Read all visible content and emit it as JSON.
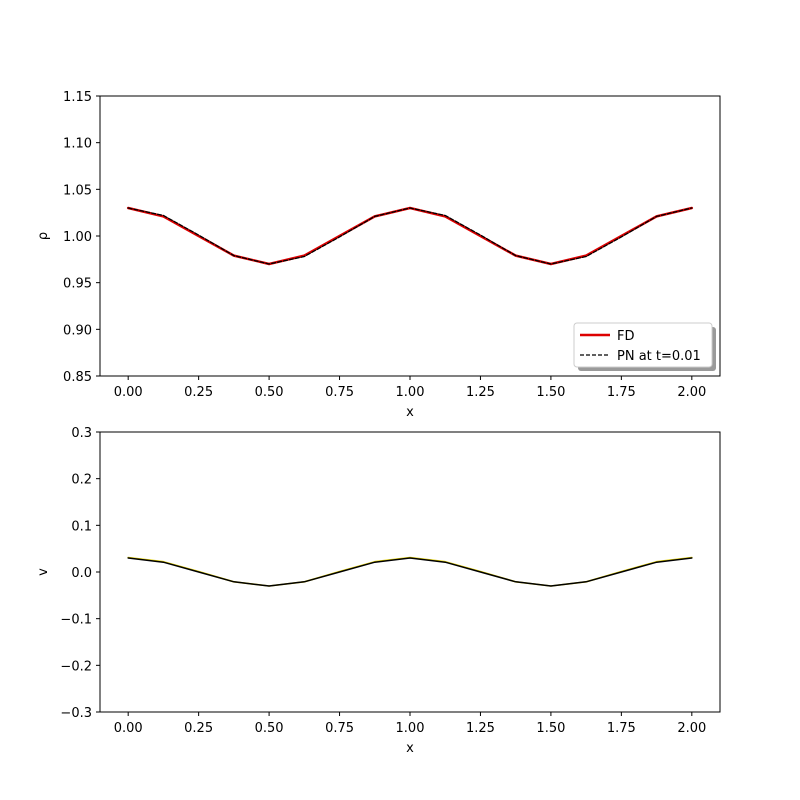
{
  "chart_data": [
    {
      "type": "line",
      "xlabel": "x",
      "ylabel": "ρ",
      "xlim": [
        -0.1,
        2.1
      ],
      "ylim": [
        0.85,
        1.15
      ],
      "xticks": [
        "0.00",
        "0.25",
        "0.50",
        "0.75",
        "1.00",
        "1.25",
        "1.50",
        "1.75",
        "2.00"
      ],
      "yticks": [
        "0.85",
        "0.90",
        "0.95",
        "1.00",
        "1.05",
        "1.10",
        "1.15"
      ],
      "grid": false,
      "legend": {
        "position": "lower-right",
        "shadow": true
      },
      "series": [
        {
          "name": "FD",
          "color": "#dd0000",
          "style": "solid",
          "x": [
            0.0,
            0.125,
            0.25,
            0.375,
            0.5,
            0.625,
            0.75,
            0.875,
            1.0,
            1.125,
            1.25,
            1.375,
            1.5,
            1.625,
            1.75,
            1.875,
            2.0
          ],
          "y": [
            1.03,
            1.021,
            1.0,
            0.979,
            0.97,
            0.979,
            1.0,
            1.021,
            1.03,
            1.021,
            1.0,
            0.979,
            0.97,
            0.979,
            1.0,
            1.021,
            1.03
          ]
        },
        {
          "name": "PN at t=0.01",
          "color": "#000000",
          "style": "dashed",
          "x": [
            0.0,
            0.125,
            0.25,
            0.375,
            0.5,
            0.625,
            0.75,
            0.875,
            1.0,
            1.125,
            1.25,
            1.375,
            1.5,
            1.625,
            1.75,
            1.875,
            2.0
          ],
          "y": [
            1.03,
            1.022,
            1.001,
            0.979,
            0.97,
            0.978,
            0.999,
            1.021,
            1.03,
            1.022,
            1.001,
            0.979,
            0.97,
            0.978,
            0.999,
            1.021,
            1.03
          ]
        }
      ]
    },
    {
      "type": "line",
      "xlabel": "x",
      "ylabel": "v",
      "xlim": [
        -0.1,
        2.1
      ],
      "ylim": [
        -0.3,
        0.3
      ],
      "xticks": [
        "0.00",
        "0.25",
        "0.50",
        "0.75",
        "1.00",
        "1.25",
        "1.50",
        "1.75",
        "2.00"
      ],
      "yticks": [
        "−0.3",
        "−0.2",
        "−0.1",
        "0.0",
        "0.1",
        "0.2",
        "0.3"
      ],
      "grid": false,
      "series": [
        {
          "color": "#e6d200",
          "style": "solid",
          "x": [
            0.0,
            0.125,
            0.25,
            0.375,
            0.5,
            0.625,
            0.75,
            0.875,
            1.0,
            1.125,
            1.25,
            1.375,
            1.5,
            1.625,
            1.75,
            1.875,
            2.0
          ],
          "y": [
            0.031,
            0.022,
            0.001,
            -0.021,
            -0.03,
            -0.021,
            0.001,
            0.022,
            0.031,
            0.022,
            0.001,
            -0.021,
            -0.03,
            -0.021,
            0.001,
            0.022,
            0.031
          ]
        },
        {
          "color": "#000000",
          "style": "solid",
          "x": [
            0.0,
            0.125,
            0.25,
            0.375,
            0.5,
            0.625,
            0.75,
            0.875,
            1.0,
            1.125,
            1.25,
            1.375,
            1.5,
            1.625,
            1.75,
            1.875,
            2.0
          ],
          "y": [
            0.03,
            0.021,
            0.0,
            -0.021,
            -0.03,
            -0.021,
            0.0,
            0.021,
            0.03,
            0.021,
            0.0,
            -0.021,
            -0.03,
            -0.021,
            0.0,
            0.021,
            0.03
          ]
        }
      ]
    }
  ]
}
